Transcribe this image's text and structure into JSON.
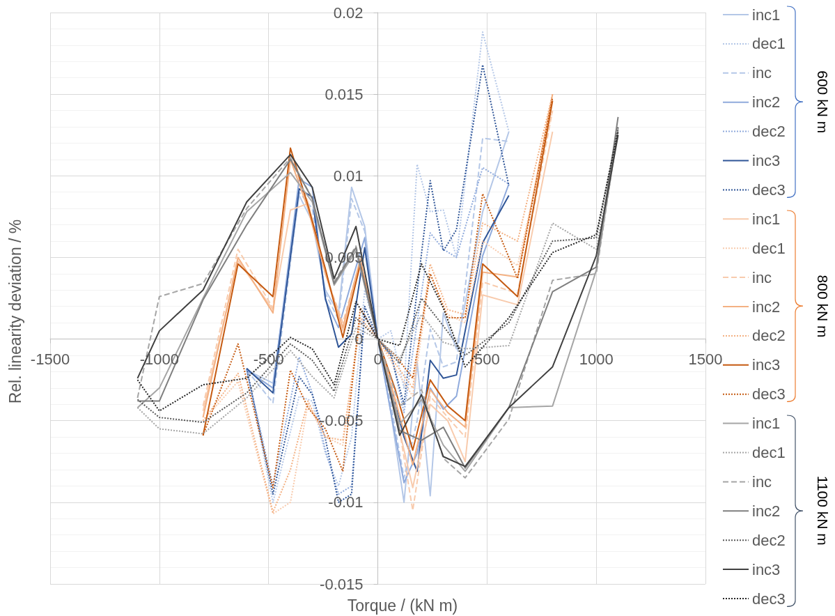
{
  "chart_data": {
    "type": "line",
    "xlabel": "Torque / (kN m)",
    "ylabel": "Rel. linearity deviation / %",
    "annotations": [
      "600 kN m",
      "800 kN m",
      "1100 kN m"
    ],
    "xlim": [
      -1500,
      1500
    ],
    "xticks": [
      -1500,
      -1000,
      -500,
      0,
      500,
      1000,
      1500
    ],
    "ylim": [
      -0.015,
      0.02
    ],
    "yticks": [
      -0.015,
      {
        "value": -0.014,
        "label": null
      },
      {
        "value": -0.013,
        "label": null
      },
      {
        "value": -0.012,
        "label": null
      },
      {
        "value": -0.011,
        "label": null
      },
      -0.01,
      {
        "value": -0.009,
        "label": null
      },
      {
        "value": -0.008,
        "label": null
      },
      {
        "value": -0.007,
        "label": null
      },
      {
        "value": -0.006,
        "label": null
      },
      -0.005,
      {
        "value": -0.004,
        "label": null
      },
      {
        "value": -0.003,
        "label": null
      },
      {
        "value": -0.002,
        "label": null
      },
      {
        "value": -0.001,
        "label": null
      },
      0,
      {
        "value": 0.001,
        "label": null
      },
      {
        "value": 0.002,
        "label": null
      },
      {
        "value": 0.003,
        "label": null
      },
      {
        "value": 0.004,
        "label": null
      },
      0.005,
      {
        "value": 0.006,
        "label": null
      },
      {
        "value": 0.007,
        "label": null
      },
      {
        "value": 0.008,
        "label": null
      },
      {
        "value": 0.009,
        "label": null
      },
      0.01,
      {
        "value": 0.011,
        "label": null
      },
      {
        "value": 0.012,
        "label": null
      },
      {
        "value": 0.013,
        "label": null
      },
      {
        "value": 0.014,
        "label": null
      },
      0.015,
      {
        "value": 0.016,
        "label": null
      },
      {
        "value": 0.017,
        "label": null
      },
      {
        "value": 0.018,
        "label": null
      },
      {
        "value": 0.019,
        "label": null
      },
      0.02
    ],
    "grid": true,
    "legend": "right",
    "marker": "none",
    "series": [
      {
        "name": "inc1",
        "color": "#b4c7e7",
        "line_style": "solid",
        "x": [
          -600,
          -480,
          -360,
          -300,
          -240,
          -180,
          -120,
          -60,
          0,
          60,
          120,
          180,
          240,
          300,
          360,
          480,
          600
        ],
        "values": [
          -0.0019,
          -0.0027,
          0.0088,
          0.0072,
          0.003,
          0.0016,
          0.0093,
          0.0069,
          0,
          -0.0045,
          -0.01,
          -0.0014,
          -0.0096,
          0.0016,
          -0.0006,
          0.0078,
          0.0127
        ]
      },
      {
        "name": "dec1",
        "color": "#b4c7e7",
        "line_style": "dotted",
        "x": [
          -600,
          -480,
          -360,
          -300,
          -240,
          -180,
          -120,
          -60,
          0,
          60,
          120,
          180,
          240,
          300,
          360,
          480,
          600
        ],
        "values": [
          -0.0019,
          -0.01,
          -0.0035,
          -0.0038,
          -0.007,
          -0.009,
          -0.006,
          0.003,
          0,
          0.0005,
          -0.003,
          0.0107,
          0.0078,
          0.0079,
          0.005,
          0.0188,
          0.0127
        ]
      },
      {
        "name": "inc",
        "color": "#b4c7e7",
        "line_style": "dashed",
        "x": [
          -600,
          -480,
          -360,
          -300,
          -240,
          -180,
          -120,
          -60,
          0,
          60,
          120,
          180,
          240,
          300,
          360,
          480,
          600
        ],
        "values": [
          -0.0019,
          -0.0039,
          0.009,
          0.008,
          0.0028,
          0.0012,
          0.0086,
          0.0066,
          0,
          -0.004,
          -0.0085,
          -0.005,
          0.0006,
          -0.0017,
          -0.0014,
          0.0123,
          0.0121
        ]
      },
      {
        "name": "inc2",
        "color": "#8faadc",
        "line_style": "solid",
        "x": [
          -600,
          -480,
          -360,
          -300,
          -240,
          -180,
          -120,
          -60,
          0,
          60,
          120,
          180,
          240,
          300,
          360,
          480,
          600
        ],
        "values": [
          -0.0019,
          -0.003,
          0.0098,
          0.0093,
          0.0024,
          0.0007,
          0.0035,
          0.0062,
          0,
          -0.0045,
          -0.0088,
          -0.007,
          -0.003,
          -0.0043,
          -0.0035,
          0.0051,
          0.0095
        ]
      },
      {
        "name": "dec2",
        "color": "#8faadc",
        "line_style": "dotted",
        "x": [
          -600,
          -480,
          -360,
          -300,
          -240,
          -180,
          -120,
          -60,
          0,
          60,
          120,
          180,
          240,
          300,
          360,
          480,
          600
        ],
        "values": [
          -0.0019,
          -0.009,
          -0.0011,
          -0.0033,
          -0.0068,
          -0.0095,
          -0.009,
          0.0015,
          0,
          -0.0008,
          -0.0045,
          0.001,
          0.0065,
          0.0055,
          0.005,
          0.0105,
          0.0095
        ]
      },
      {
        "name": "inc3",
        "color": "#2f5597",
        "line_style": "solid",
        "x": [
          -600,
          -480,
          -360,
          -300,
          -240,
          -180,
          -120,
          -60,
          0,
          60,
          120,
          180,
          240,
          300,
          360,
          480,
          600
        ],
        "values": [
          -0.0018,
          -0.0033,
          0.0092,
          0.0087,
          0.0025,
          -0.0005,
          0.0003,
          0.0056,
          0,
          -0.003,
          -0.006,
          -0.0081,
          -0.0013,
          -0.0024,
          -0.0022,
          0.0059,
          0.0088
        ]
      },
      {
        "name": "dec3",
        "color": "#2f5597",
        "line_style": "dotted",
        "x": [
          -600,
          -480,
          -360,
          -300,
          -240,
          -180,
          -120,
          -60,
          0,
          60,
          120,
          180,
          240,
          300,
          360,
          480,
          600
        ],
        "values": [
          -0.0018,
          -0.0095,
          -0.0023,
          -0.0034,
          -0.0061,
          -0.01,
          -0.0095,
          0.002,
          0,
          -0.001,
          -0.004,
          0.003,
          0.0097,
          0.0054,
          0.0067,
          0.0168,
          0.0094
        ]
      },
      {
        "name": "inc1",
        "color": "#f8cbad",
        "line_style": "solid",
        "x": [
          -800,
          -640,
          -480,
          -400,
          -320,
          -240,
          -160,
          -80,
          0,
          80,
          160,
          240,
          320,
          400,
          480,
          640,
          800
        ],
        "values": [
          -0.0044,
          0.0048,
          0.0018,
          0.0079,
          0.0083,
          0.0042,
          0.0005,
          0.0045,
          0,
          -0.0045,
          -0.0091,
          -0.004,
          -0.005,
          -0.0075,
          0.0027,
          0.0021,
          0.0127
        ]
      },
      {
        "name": "dec1",
        "color": "#f8cbad",
        "line_style": "dotted",
        "x": [
          -800,
          -640,
          -480,
          -400,
          -320,
          -240,
          -160,
          -80,
          0,
          80,
          160,
          240,
          320,
          400,
          480,
          640,
          800
        ],
        "values": [
          -0.005,
          -0.0026,
          -0.0107,
          -0.01,
          -0.004,
          -0.006,
          -0.0065,
          0.001,
          0,
          -0.0018,
          -0.0035,
          0.004,
          0.0015,
          0.001,
          0.006,
          0.0045,
          0.014
        ]
      },
      {
        "name": "inc",
        "color": "#f8cbad",
        "line_style": "dashed",
        "x": [
          -800,
          -640,
          -480,
          -400,
          -320,
          -240,
          -160,
          -80,
          0,
          80,
          160,
          240,
          320,
          400,
          480,
          640,
          800
        ],
        "values": [
          -0.0041,
          0.0055,
          0.0019,
          0.0112,
          0.0084,
          0.004,
          0.001,
          0.0048,
          0,
          -0.004,
          -0.0105,
          -0.0035,
          -0.0048,
          -0.006,
          0.0035,
          0.0028,
          0.014
        ]
      },
      {
        "name": "inc2",
        "color": "#f4b183",
        "line_style": "solid",
        "x": [
          -800,
          -640,
          -480,
          -400,
          -320,
          -240,
          -160,
          -80,
          0,
          80,
          160,
          240,
          320,
          400,
          480,
          640,
          800
        ],
        "values": [
          -0.0048,
          0.005,
          0.0016,
          0.011,
          0.008,
          0.004,
          0.0007,
          0.0049,
          0,
          -0.0037,
          -0.0077,
          -0.0031,
          -0.0045,
          -0.0054,
          0.0041,
          0.0038,
          0.015
        ]
      },
      {
        "name": "dec2",
        "color": "#f4b183",
        "line_style": "dotted",
        "x": [
          -800,
          -640,
          -480,
          -400,
          -320,
          -240,
          -160,
          -80,
          0,
          80,
          160,
          240,
          320,
          400,
          480,
          640,
          800
        ],
        "values": [
          -0.005,
          -0.0021,
          -0.0106,
          -0.008,
          -0.0038,
          -0.006,
          -0.0062,
          0.0013,
          0,
          -0.0015,
          -0.003,
          0.0046,
          0.0018,
          0.0015,
          0.0071,
          0.006,
          0.015
        ]
      },
      {
        "name": "inc3",
        "color": "#c55a11",
        "line_style": "solid",
        "x": [
          -800,
          -640,
          -480,
          -400,
          -320,
          -240,
          -160,
          -80,
          0,
          80,
          160,
          240,
          320,
          400,
          480,
          640,
          800
        ],
        "values": [
          -0.0059,
          0.0046,
          0.0026,
          0.0117,
          0.0082,
          0.0043,
          0.0001,
          0.0046,
          0,
          -0.0031,
          -0.0068,
          -0.0025,
          -0.0041,
          -0.005,
          0.0046,
          0.0026,
          0.0146
        ]
      },
      {
        "name": "dec3",
        "color": "#c55a11",
        "line_style": "dotted",
        "x": [
          -800,
          -640,
          -480,
          -400,
          -320,
          -240,
          -160,
          -80,
          0,
          80,
          160,
          240,
          320,
          400,
          480,
          640,
          800
        ],
        "values": [
          -0.0059,
          -0.0003,
          -0.0091,
          -0.0019,
          -0.0042,
          -0.0055,
          -0.0081,
          0.0019,
          0,
          -0.001,
          -0.0024,
          0.004,
          0.0013,
          0.0013,
          0.0089,
          0.0037,
          0.0148
        ]
      },
      {
        "name": "inc1",
        "color": "#a5a5a5",
        "line_style": "solid",
        "x": [
          -1100,
          -1000,
          -800,
          -600,
          -400,
          -300,
          -200,
          -100,
          0,
          100,
          200,
          300,
          400,
          600,
          800,
          1000,
          1100
        ],
        "values": [
          -0.0042,
          -0.003,
          0.0025,
          0.0078,
          0.0102,
          0.0084,
          0.0033,
          0.0054,
          0,
          -0.0052,
          -0.0037,
          -0.0065,
          -0.0081,
          -0.0042,
          -0.0041,
          0.0042,
          0.0128
        ]
      },
      {
        "name": "dec1",
        "color": "#a5a5a5",
        "line_style": "dotted",
        "x": [
          -1100,
          -1000,
          -800,
          -600,
          -400,
          -300,
          -200,
          -100,
          0,
          100,
          200,
          300,
          400,
          600,
          800,
          1000,
          1100
        ],
        "values": [
          -0.0042,
          -0.0055,
          -0.0058,
          -0.0036,
          -0.0007,
          -0.0023,
          -0.0036,
          0.0007,
          0,
          -0.0012,
          0.0015,
          -0.0002,
          -0.0006,
          -0.0004,
          0.0071,
          0.0055,
          0.0128
        ]
      },
      {
        "name": "inc",
        "color": "#a5a5a5",
        "line_style": "dashed",
        "x": [
          -1100,
          -1000,
          -800,
          -600,
          -400,
          -300,
          -200,
          -100,
          0,
          100,
          200,
          300,
          400,
          600,
          800,
          1000,
          1100
        ],
        "values": [
          -0.0036,
          0.0026,
          0.0034,
          0.008,
          0.0111,
          0.0086,
          0.0035,
          0.0057,
          0,
          -0.0041,
          -0.0031,
          -0.0073,
          -0.0085,
          -0.0049,
          0.0036,
          0.004,
          0.0129
        ]
      },
      {
        "name": "inc2",
        "color": "#7f7f7f",
        "line_style": "solid",
        "x": [
          -1100,
          -1000,
          -800,
          -600,
          -400,
          -300,
          -200,
          -100,
          0,
          100,
          200,
          300,
          400,
          600,
          800,
          1000,
          1100
        ],
        "values": [
          -0.0038,
          -0.0038,
          0.0024,
          0.007,
          0.011,
          0.0086,
          0.0034,
          0.0056,
          0,
          -0.0056,
          -0.0062,
          -0.0054,
          -0.0079,
          -0.0042,
          0.0029,
          0.0044,
          0.0136
        ]
      },
      {
        "name": "dec2",
        "color": "#595959",
        "line_style": "dotted",
        "x": [
          -1100,
          -1000,
          -800,
          -600,
          -400,
          -300,
          -200,
          -100,
          0,
          100,
          200,
          300,
          400,
          600,
          800,
          1000,
          1100
        ],
        "values": [
          -0.0037,
          -0.0048,
          -0.0051,
          -0.0033,
          -0.0003,
          -0.0013,
          -0.0032,
          0.0013,
          0,
          -0.0015,
          0.0025,
          0.0008,
          -0.001,
          0.001,
          0.006,
          0.0062,
          0.013
        ]
      },
      {
        "name": "inc3",
        "color": "#404040",
        "line_style": "solid",
        "x": [
          -1100,
          -1000,
          -800,
          -600,
          -400,
          -300,
          -200,
          -100,
          0,
          100,
          200,
          300,
          400,
          600,
          800,
          1000,
          1100
        ],
        "values": [
          -0.0024,
          0.0005,
          0.003,
          0.0084,
          0.0113,
          0.0093,
          0.0037,
          0.0069,
          0,
          -0.0059,
          -0.0034,
          -0.0072,
          -0.0078,
          -0.0042,
          -0.0017,
          0.0051,
          0.0125
        ]
      },
      {
        "name": "dec3",
        "color": "#262626",
        "line_style": "dotted",
        "x": [
          -1100,
          -1000,
          -800,
          -600,
          -400,
          -300,
          -200,
          -100,
          0,
          100,
          200,
          300,
          400,
          600,
          800,
          1000,
          1100
        ],
        "values": [
          -0.0025,
          -0.0044,
          -0.0028,
          -0.0024,
          0.0001,
          -0.0006,
          -0.0028,
          0.0023,
          0,
          -0.0004,
          0.0046,
          0.0019,
          -0.0017,
          0.0013,
          0.0053,
          0.0064,
          0.0127
        ]
      }
    ]
  }
}
